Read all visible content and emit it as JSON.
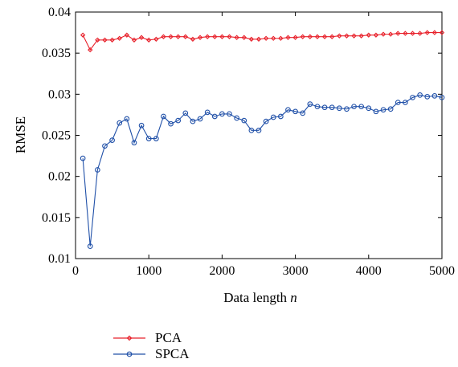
{
  "chart_data": {
    "type": "line",
    "title": "",
    "xlabel_text": "Data length ",
    "xlabel_var": "n",
    "ylabel": "RMSE",
    "xlim": [
      0,
      5000
    ],
    "ylim": [
      0.01,
      0.04
    ],
    "x_ticks": [
      0,
      1000,
      2000,
      3000,
      4000,
      5000
    ],
    "x_tick_labels": [
      "0",
      "1000",
      "2000",
      "3000",
      "4000",
      "5000"
    ],
    "y_ticks": [
      0.01,
      0.015,
      0.02,
      0.025,
      0.03,
      0.035,
      0.04
    ],
    "y_tick_labels": [
      "0.01",
      "0.015",
      "0.02",
      "0.025",
      "0.03",
      "0.035",
      "0.04"
    ],
    "grid": false,
    "legend_position": "below",
    "x": [
      100,
      200,
      300,
      400,
      500,
      600,
      700,
      800,
      900,
      1000,
      1100,
      1200,
      1300,
      1400,
      1500,
      1600,
      1700,
      1800,
      1900,
      2000,
      2100,
      2200,
      2300,
      2400,
      2500,
      2600,
      2700,
      2800,
      2900,
      3000,
      3100,
      3200,
      3300,
      3400,
      3500,
      3600,
      3700,
      3800,
      3900,
      4000,
      4100,
      4200,
      4300,
      4400,
      4500,
      4600,
      4700,
      4800,
      4900,
      5000
    ],
    "series": [
      {
        "name": "PCA",
        "color": "#e8202a",
        "marker": "diamond",
        "values": [
          0.0372,
          0.0354,
          0.0366,
          0.0366,
          0.0366,
          0.0368,
          0.0372,
          0.0366,
          0.0369,
          0.0366,
          0.0367,
          0.037,
          0.037,
          0.037,
          0.037,
          0.0367,
          0.0369,
          0.037,
          0.037,
          0.037,
          0.037,
          0.0369,
          0.0369,
          0.0367,
          0.0367,
          0.0368,
          0.0368,
          0.0368,
          0.0369,
          0.0369,
          0.037,
          0.037,
          0.037,
          0.037,
          0.037,
          0.0371,
          0.0371,
          0.0371,
          0.0371,
          0.0372,
          0.0372,
          0.0373,
          0.0373,
          0.0374,
          0.0374,
          0.0374,
          0.0374,
          0.0375,
          0.0375,
          0.0375
        ]
      },
      {
        "name": "SPCA",
        "color": "#2050a8",
        "marker": "circle",
        "values": [
          0.0222,
          0.0115,
          0.0208,
          0.0237,
          0.0244,
          0.0265,
          0.027,
          0.0241,
          0.0262,
          0.0246,
          0.0246,
          0.0273,
          0.0264,
          0.0268,
          0.0277,
          0.0267,
          0.027,
          0.0278,
          0.0273,
          0.0276,
          0.0276,
          0.0271,
          0.0268,
          0.0256,
          0.0256,
          0.0267,
          0.0272,
          0.0273,
          0.0281,
          0.0279,
          0.0277,
          0.0288,
          0.0285,
          0.0284,
          0.0284,
          0.0283,
          0.0282,
          0.0285,
          0.0285,
          0.0283,
          0.0279,
          0.0281,
          0.0282,
          0.029,
          0.029,
          0.0296,
          0.0299,
          0.0297,
          0.0298,
          0.0296
        ]
      }
    ]
  }
}
